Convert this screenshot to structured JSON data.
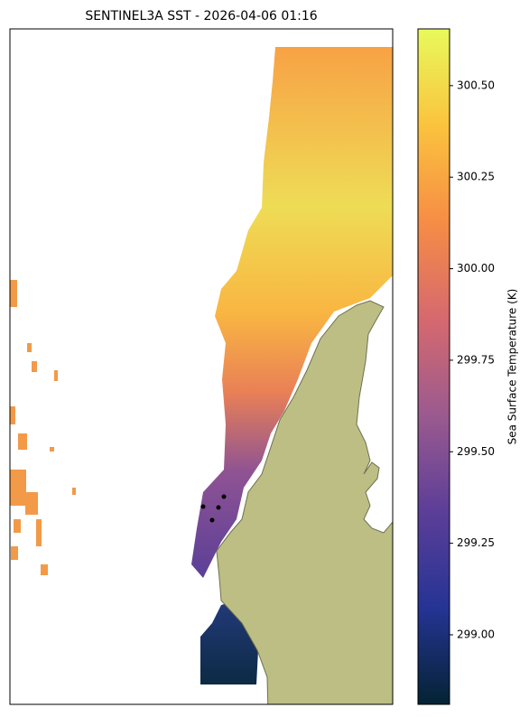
{
  "map": {
    "title": "SENTINEL3A SST - 2026-04-06 01:16",
    "colorbar": {
      "label": "Sea Surface Temperature (K)",
      "lim": [
        298.81,
        300.655
      ],
      "ticks": [
        {
          "value": 299.0,
          "label": "299.00"
        },
        299.25,
        {
          "value": 299.5,
          "label": "299.50"
        },
        299.75,
        {
          "value": 300.0,
          "label": "300.00"
        },
        300.25,
        {
          "value": 300.5,
          "label": "300.50"
        }
      ],
      "colors": [
        "#042333",
        "#253494",
        "#5c3e98",
        "#9b5a8f",
        "#d6696e",
        "#f68d45",
        "#fbc33e",
        "#e8fa5b"
      ]
    }
  }
}
